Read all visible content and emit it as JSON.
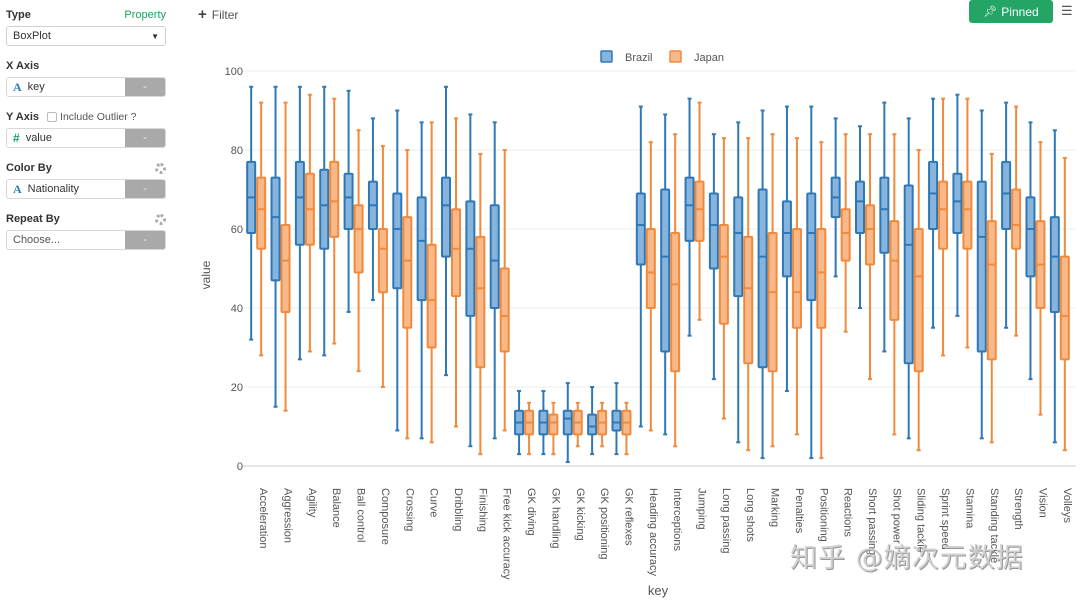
{
  "sidebar": {
    "type_label": "Type",
    "property_link": "Property",
    "type_value": "BoxPlot",
    "x_axis_label": "X Axis",
    "x_axis_value": "key",
    "x_axis_type_glyph": "A",
    "y_axis_label": "Y Axis",
    "include_outlier_label": "Include Outlier ?",
    "include_outlier_checked": false,
    "y_axis_value": "value",
    "y_axis_type_glyph": "#",
    "color_by_label": "Color By",
    "color_by_value": "Nationality",
    "color_by_type_glyph": "A",
    "repeat_by_label": "Repeat By",
    "repeat_by_placeholder": "Choose...",
    "remove_label": "-"
  },
  "toolbar": {
    "filter_label": "Filter",
    "pinned_label": "Pinned",
    "pinned_icon": "pushpin-icon",
    "menu_icon": "hamburger-icon"
  },
  "watermark": "知乎 @嫡次元数据",
  "colors": {
    "Brazil": "#2e78b7",
    "Japan": "#f28a3c",
    "Brazil_fill": "#86b4dd",
    "Japan_fill": "#f7b98a",
    "accent": "#22a565"
  },
  "chart_data": {
    "type": "box",
    "title": "",
    "xlabel": "key",
    "ylabel": "value",
    "ylim": [
      0,
      100
    ],
    "yticks": [
      0,
      20,
      40,
      60,
      80,
      100
    ],
    "grid": true,
    "legend": {
      "position": "top-center",
      "entries": [
        "Brazil",
        "Japan"
      ]
    },
    "categories": [
      "Acceleration",
      "Aggression",
      "Agility",
      "Balance",
      "Ball control",
      "Composure",
      "Crossing",
      "Curve",
      "Dribbling",
      "Finishing",
      "Free kick accuracy",
      "GK diving",
      "GK handling",
      "GK kicking",
      "GK positioning",
      "GK reflexes",
      "Heading accuracy",
      "Interceptions",
      "Jumping",
      "Long passing",
      "Long shots",
      "Marking",
      "Penalties",
      "Positioning",
      "Reactions",
      "Short passing",
      "Shot power",
      "Sliding tackle",
      "Sprint speed",
      "Stamina",
      "Standing tackle",
      "Strength",
      "Vision",
      "Volleys"
    ],
    "series": [
      {
        "name": "Brazil",
        "stats_order": [
          "min",
          "q1",
          "median",
          "q3",
          "max"
        ],
        "values": [
          [
            32,
            59,
            68,
            77,
            96
          ],
          [
            15,
            47,
            63,
            73,
            96
          ],
          [
            27,
            56,
            68,
            77,
            96
          ],
          [
            28,
            55,
            66,
            75,
            96
          ],
          [
            39,
            60,
            68,
            74,
            95
          ],
          [
            42,
            60,
            66,
            72,
            88
          ],
          [
            9,
            45,
            60,
            69,
            90
          ],
          [
            7,
            42,
            57,
            68,
            87
          ],
          [
            23,
            53,
            66,
            73,
            96
          ],
          [
            5,
            38,
            55,
            67,
            89
          ],
          [
            7,
            40,
            52,
            66,
            87
          ],
          [
            3,
            8,
            11,
            14,
            19
          ],
          [
            3,
            8,
            11,
            14,
            19
          ],
          [
            1,
            8,
            12,
            14,
            21
          ],
          [
            3,
            8,
            10,
            13,
            20
          ],
          [
            3,
            9,
            11,
            14,
            21
          ],
          [
            10,
            51,
            61,
            69,
            91
          ],
          [
            8,
            29,
            53,
            70,
            89
          ],
          [
            33,
            57,
            66,
            73,
            93
          ],
          [
            22,
            50,
            61,
            69,
            84
          ],
          [
            6,
            43,
            59,
            68,
            87
          ],
          [
            2,
            25,
            53,
            70,
            90
          ],
          [
            19,
            48,
            59,
            67,
            91
          ],
          [
            2,
            42,
            59,
            69,
            91
          ],
          [
            48,
            63,
            68,
            73,
            88
          ],
          [
            40,
            59,
            67,
            72,
            86
          ],
          [
            29,
            54,
            65,
            73,
            92
          ],
          [
            7,
            26,
            56,
            71,
            88
          ],
          [
            35,
            60,
            69,
            77,
            93
          ],
          [
            38,
            59,
            67,
            74,
            94
          ],
          [
            7,
            29,
            58,
            72,
            90
          ],
          [
            35,
            60,
            69,
            77,
            92
          ],
          [
            22,
            48,
            60,
            68,
            87
          ],
          [
            6,
            39,
            53,
            63,
            85
          ]
        ]
      },
      {
        "name": "Japan",
        "stats_order": [
          "min",
          "q1",
          "median",
          "q3",
          "max"
        ],
        "values": [
          [
            28,
            55,
            65,
            73,
            92
          ],
          [
            14,
            39,
            52,
            61,
            92
          ],
          [
            29,
            56,
            65,
            74,
            94
          ],
          [
            31,
            58,
            67,
            77,
            93
          ],
          [
            24,
            49,
            60,
            66,
            85
          ],
          [
            20,
            44,
            55,
            60,
            81
          ],
          [
            7,
            35,
            52,
            63,
            80
          ],
          [
            6,
            30,
            42,
            56,
            87
          ],
          [
            10,
            43,
            55,
            65,
            88
          ],
          [
            3,
            25,
            45,
            58,
            79
          ],
          [
            9,
            29,
            38,
            50,
            80
          ],
          [
            3,
            8,
            11,
            14,
            16
          ],
          [
            3,
            8,
            11,
            13,
            16
          ],
          [
            5,
            8,
            11,
            14,
            16
          ],
          [
            5,
            8,
            11,
            14,
            16
          ],
          [
            3,
            8,
            11,
            14,
            16
          ],
          [
            9,
            40,
            49,
            60,
            82
          ],
          [
            5,
            24,
            46,
            59,
            84
          ],
          [
            37,
            57,
            65,
            72,
            92
          ],
          [
            12,
            36,
            53,
            61,
            83
          ],
          [
            4,
            26,
            45,
            58,
            83
          ],
          [
            5,
            24,
            44,
            59,
            84
          ],
          [
            8,
            35,
            44,
            60,
            83
          ],
          [
            2,
            35,
            49,
            60,
            82
          ],
          [
            34,
            52,
            59,
            65,
            84
          ],
          [
            22,
            51,
            60,
            66,
            84
          ],
          [
            8,
            37,
            52,
            62,
            84
          ],
          [
            4,
            24,
            48,
            60,
            80
          ],
          [
            28,
            55,
            65,
            72,
            93
          ],
          [
            30,
            55,
            65,
            72,
            93
          ],
          [
            6,
            27,
            51,
            62,
            79
          ],
          [
            33,
            55,
            61,
            70,
            91
          ],
          [
            13,
            40,
            51,
            62,
            82
          ],
          [
            4,
            27,
            38,
            53,
            78
          ]
        ]
      }
    ]
  }
}
